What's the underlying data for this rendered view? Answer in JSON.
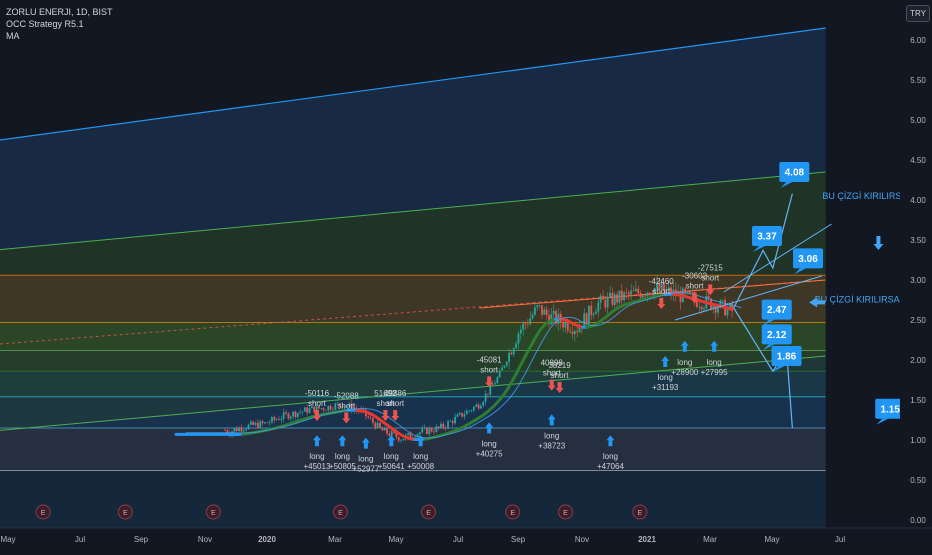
{
  "header": {
    "symbol_line": "ZORLU ENERJI, 1D, BIST",
    "strategy": "OCC Strategy R5.1",
    "indicator": "MA",
    "currency": "TRY"
  },
  "chart_data": {
    "type": "line",
    "ylim": [
      -0.1,
      6.3
    ],
    "y_ticks": [
      6.0,
      5.5,
      5.0,
      4.5,
      4.0,
      3.5,
      3.0,
      2.5,
      2.0,
      1.5,
      1.0,
      0.5,
      0.0
    ],
    "x_labels": [
      "May",
      "Jul",
      "Sep",
      "Nov",
      "2020",
      "Mar",
      "May",
      "Jul",
      "Sep",
      "Nov",
      "2021",
      "Mar",
      "May",
      "Jul"
    ],
    "price_path": [
      [
        1.15,
        1.12
      ],
      [
        1.17,
        1.1
      ],
      [
        1.2,
        1.13
      ],
      [
        1.28,
        1.18
      ],
      [
        1.35,
        1.2
      ],
      [
        1.45,
        1.3
      ],
      [
        1.58,
        1.38
      ],
      [
        1.65,
        1.4
      ],
      [
        1.75,
        1.45
      ],
      [
        1.85,
        1.35
      ],
      [
        1.95,
        1.12
      ],
      [
        2.05,
        1.02
      ],
      [
        2.15,
        1.1
      ],
      [
        2.25,
        1.15
      ],
      [
        2.35,
        1.3
      ],
      [
        2.45,
        1.45
      ],
      [
        2.55,
        1.8
      ],
      [
        2.65,
        2.35
      ],
      [
        2.75,
        2.65
      ],
      [
        2.8,
        2.55
      ],
      [
        2.95,
        2.4
      ],
      [
        3.05,
        2.7
      ],
      [
        3.2,
        2.8
      ],
      [
        3.35,
        2.9
      ],
      [
        3.55,
        2.75
      ],
      [
        3.65,
        2.7
      ],
      [
        3.75,
        2.6
      ]
    ],
    "fib_levels": [
      1.15,
      1.54,
      1.86,
      2.12,
      2.47,
      3.06
    ],
    "targets": [
      "4.08",
      "3.37",
      "3.06",
      "2.47",
      "2.12",
      "1.86",
      "1.15"
    ],
    "annotations": [
      "BU ÇİZGİ KIRILIRSA HEDEF",
      "BU ÇİZGİ KIRILIRSA TREND BİTER"
    ],
    "trade_labels": [
      {
        "kind": "short",
        "value": "-50116"
      },
      {
        "kind": "short",
        "value": "-52088"
      },
      {
        "kind": "short",
        "value": "51692"
      },
      {
        "kind": "short",
        "value": "49886"
      },
      {
        "kind": "short",
        "value": "-45081"
      },
      {
        "kind": "short",
        "value": "40898"
      },
      {
        "kind": "short",
        "value": "38219"
      },
      {
        "kind": "short",
        "value": "-42460"
      },
      {
        "kind": "short",
        "value": "-30602"
      },
      {
        "kind": "short",
        "value": "-27515"
      },
      {
        "kind": "long",
        "value": "+45013"
      },
      {
        "kind": "long",
        "value": "+50805"
      },
      {
        "kind": "long",
        "value": "+52977"
      },
      {
        "kind": "long",
        "value": "+50641"
      },
      {
        "kind": "long",
        "value": "+50008"
      },
      {
        "kind": "long",
        "value": "+40275"
      },
      {
        "kind": "long",
        "value": "+38723"
      },
      {
        "kind": "long",
        "value": "+47064"
      },
      {
        "kind": "long",
        "value": "+31193"
      },
      {
        "kind": "long",
        "value": "+28900"
      },
      {
        "kind": "long",
        "value": "+27995"
      }
    ],
    "marker_letter": "E",
    "colors": {
      "background": "#131722",
      "up": "#26a69a",
      "down": "#ef5350",
      "ma_up": "#2e7d32",
      "ma_down": "#e53935",
      "ma_neutral": "#2196f3",
      "callout": "#2196f3"
    }
  }
}
